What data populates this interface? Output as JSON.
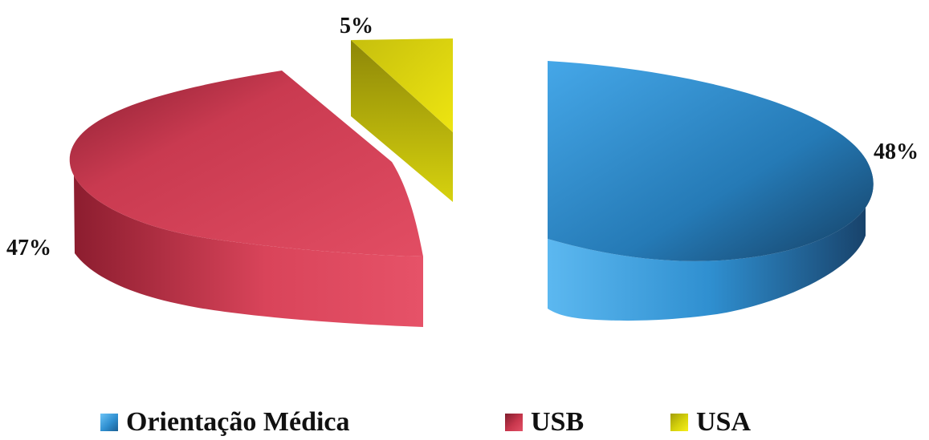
{
  "chart_data": {
    "type": "pie",
    "title": "",
    "categories": [
      "Orientação Médica",
      "USB",
      "USA"
    ],
    "values": [
      48,
      47,
      5
    ],
    "series": [
      {
        "values": [
          48,
          47,
          5
        ]
      }
    ],
    "slice_labels": [
      "48%",
      "47%",
      "5%"
    ],
    "colors": [
      "#2f8fd0",
      "#c9374d",
      "#d6d20b"
    ],
    "legend_position": "bottom",
    "style": "3d-exploded",
    "grid": false
  },
  "legend": {
    "items": [
      {
        "label": "Orientação Médica",
        "color": "#2f8fd0"
      },
      {
        "label": "USB",
        "color": "#c9374d"
      },
      {
        "label": "USA",
        "color": "#d6d20b"
      }
    ]
  }
}
